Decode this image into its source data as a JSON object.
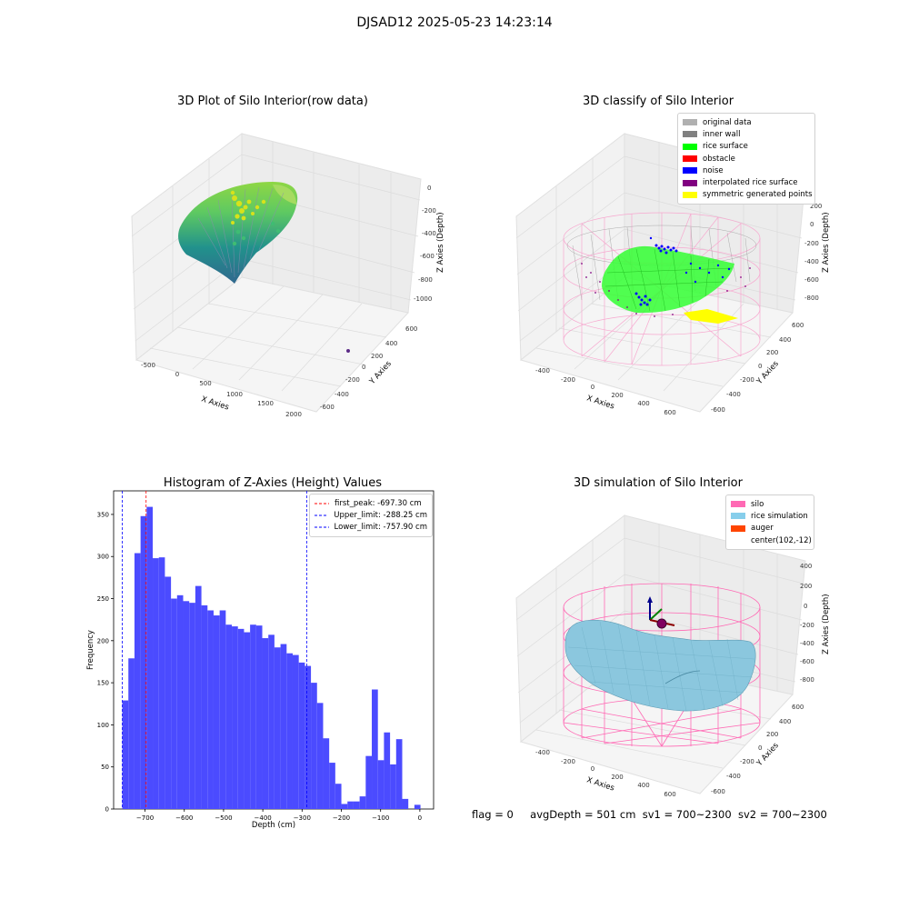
{
  "suptitle": "DJSAD12 2025-05-23 14:23:14",
  "panel_tl": {
    "title": "3D Plot of Silo Interior(row data)",
    "xlabel": "X Axies",
    "ylabel": "Y Axies",
    "zlabel": "Z Axies (Depth)",
    "xticks": [
      "-500",
      "0",
      "500",
      "1000",
      "1500",
      "2000"
    ],
    "yticks": [
      "600",
      "400",
      "200",
      "0",
      "-200",
      "-400",
      "-600"
    ],
    "zticks": [
      "0",
      "-200",
      "-400",
      "-600",
      "-800",
      "-1000"
    ]
  },
  "panel_tr": {
    "title": "3D classify of Silo Interior",
    "xlabel": "X Axies",
    "ylabel": "Y Axies",
    "zlabel": "Z Axies (Depth)",
    "xticks": [
      "-400",
      "-200",
      "0",
      "200",
      "400",
      "600"
    ],
    "yticks": [
      "600",
      "400",
      "200",
      "0",
      "-200",
      "-400",
      "-600"
    ],
    "zticks": [
      "200",
      "0",
      "-200",
      "-400",
      "-600",
      "-800"
    ],
    "legend": [
      {
        "label": "original data",
        "color": "#b0b0b0"
      },
      {
        "label": "inner wall",
        "color": "#808080"
      },
      {
        "label": "rice surface",
        "color": "#00ff00"
      },
      {
        "label": "obstacle",
        "color": "#ff0000"
      },
      {
        "label": "noise",
        "color": "#0000ff"
      },
      {
        "label": "interpolated rice surface",
        "color": "#800080"
      },
      {
        "label": "symmetric generated points",
        "color": "#ffff00"
      }
    ]
  },
  "panel_br": {
    "title": "3D simulation of Silo Interior",
    "xlabel": "X Axies",
    "ylabel": "Y Axies",
    "zlabel": "Z Axies (Depth)",
    "xticks": [
      "-400",
      "-200",
      "0",
      "200",
      "400",
      "600"
    ],
    "yticks": [
      "600",
      "400",
      "200",
      "0",
      "-200",
      "-400",
      "-600"
    ],
    "zticks": [
      "400",
      "200",
      "0",
      "-200",
      "-400",
      "-600",
      "-800"
    ],
    "legend": [
      {
        "label": "silo",
        "color": "#ff69b4"
      },
      {
        "label": "rice simulation",
        "color": "#87ceeb"
      },
      {
        "label": "auger",
        "color": "#ff4500"
      },
      {
        "label": "center(102,-12)",
        "color": ""
      }
    ]
  },
  "chart_data": {
    "type": "bar",
    "title": "Histogram of Z-Axies (Height) Values",
    "xlabel": "Depth (cm)",
    "ylabel": "Frequency",
    "color": "#4b4bff",
    "xlim": [
      -780,
      35
    ],
    "ylim": [
      0,
      378
    ],
    "xticks": [
      -700,
      -600,
      -500,
      -400,
      -300,
      -200,
      -100,
      0
    ],
    "yticks": [
      0,
      50,
      100,
      150,
      200,
      250,
      300,
      350
    ],
    "bin_start": -757.9,
    "bin_width": 15.5,
    "values": [
      129,
      179,
      304,
      348,
      359,
      298,
      299,
      276,
      250,
      254,
      247,
      245,
      265,
      242,
      236,
      230,
      236,
      219,
      217,
      214,
      210,
      219,
      218,
      203,
      207,
      192,
      196,
      185,
      183,
      174,
      170,
      150,
      126,
      84,
      55,
      30,
      6,
      9,
      9,
      15,
      63,
      142,
      58,
      91,
      53,
      83,
      12,
      0,
      5
    ],
    "vlines": [
      {
        "label": "first_peak: -697.30 cm",
        "value": -697.3,
        "color": "#ff0000"
      },
      {
        "label": "Upper_limit: -288.25 cm",
        "value": -288.25,
        "color": "#0000ff"
      },
      {
        "label": "Lower_limit: -757.90 cm",
        "value": -757.9,
        "color": "#0000ff"
      }
    ]
  },
  "footer": {
    "flag": "flag = 0",
    "avg": "avgDepth = 501 cm",
    "sv1": "sv1 = 700~2300",
    "sv2": "sv2 = 700~2300"
  }
}
